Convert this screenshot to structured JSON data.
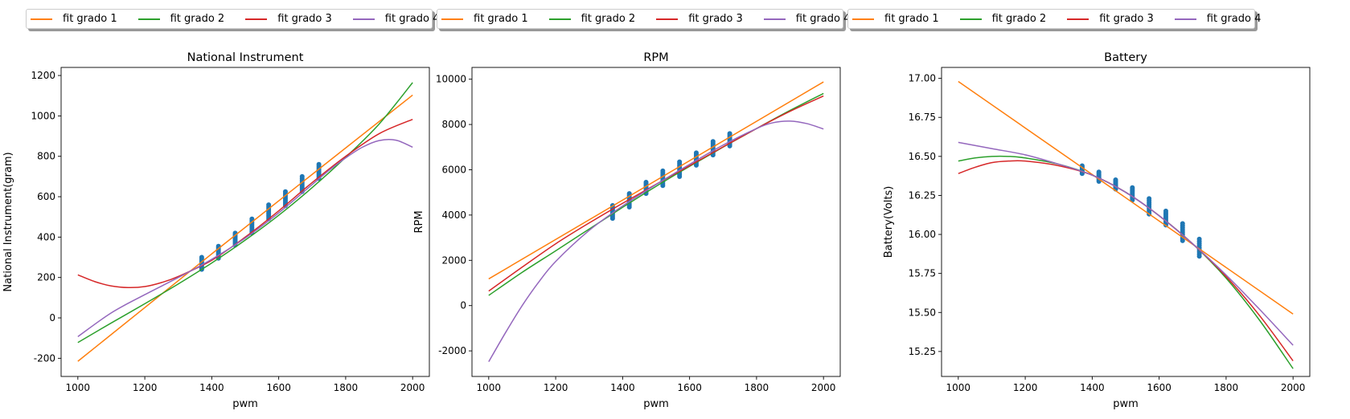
{
  "legend_entries": [
    {
      "label": "fit grado 1",
      "color": "#ff7f0e"
    },
    {
      "label": "fit grado 2",
      "color": "#2ca02c"
    },
    {
      "label": "fit grado 3",
      "color": "#d62728"
    },
    {
      "label": "fit grado 4",
      "color": "#9467bd"
    }
  ],
  "chart_data": [
    {
      "type": "scatter+line",
      "title": "National Instrument",
      "xlabel": "pwm",
      "ylabel": "National Instrument(gram)",
      "xlim": [
        950,
        2050
      ],
      "ylim": [
        -290,
        1240
      ],
      "xticks": [
        1000,
        1200,
        1400,
        1600,
        1800,
        2000
      ],
      "yticks": [
        -200,
        0,
        200,
        400,
        600,
        800,
        1000,
        1200
      ],
      "grid": false,
      "scatter": {
        "name": "",
        "color": "#1f77b4",
        "columns": [
          {
            "x": 1370,
            "ymin": 240,
            "ymax": 300
          },
          {
            "x": 1420,
            "ymin": 295,
            "ymax": 355
          },
          {
            "x": 1470,
            "ymin": 360,
            "ymax": 420
          },
          {
            "x": 1520,
            "ymin": 420,
            "ymax": 490
          },
          {
            "x": 1570,
            "ymin": 490,
            "ymax": 560
          },
          {
            "x": 1620,
            "ymin": 555,
            "ymax": 625
          },
          {
            "x": 1670,
            "ymin": 625,
            "ymax": 700
          },
          {
            "x": 1720,
            "ymin": 690,
            "ymax": 760
          }
        ]
      },
      "series": [
        {
          "name": "fit grado 1",
          "color": "#ff7f0e",
          "x": [
            1000,
            1400,
            2000
          ],
          "y": [
            -215,
            317,
            1103
          ]
        },
        {
          "name": "fit grado 2",
          "color": "#2ca02c",
          "x": [
            1000,
            1100,
            1200,
            1300,
            1400,
            1500,
            1600,
            1700,
            1800,
            1900,
            2000
          ],
          "y": [
            -122,
            -25,
            70,
            168,
            272,
            385,
            508,
            645,
            795,
            960,
            1165
          ]
        },
        {
          "name": "fit grado 3",
          "color": "#d62728",
          "x": [
            1000,
            1050,
            1100,
            1150,
            1200,
            1250,
            1300,
            1400,
            1500,
            1600,
            1700,
            1800,
            1900,
            2000
          ],
          "y": [
            213,
            180,
            158,
            150,
            155,
            175,
            205,
            285,
            400,
            530,
            670,
            800,
            912,
            983
          ]
        },
        {
          "name": "fit grado 4",
          "color": "#9467bd",
          "x": [
            1000,
            1100,
            1200,
            1300,
            1400,
            1500,
            1600,
            1700,
            1750,
            1800,
            1850,
            1900,
            1950,
            2000
          ],
          "y": [
            -93,
            25,
            115,
            200,
            290,
            395,
            520,
            660,
            730,
            792,
            845,
            878,
            880,
            845
          ]
        }
      ]
    },
    {
      "type": "scatter+line",
      "title": "RPM",
      "xlabel": "pwm",
      "ylabel": "RPM",
      "xlim": [
        950,
        2050
      ],
      "ylim": [
        -3130,
        10520
      ],
      "xticks": [
        1000,
        1200,
        1400,
        1600,
        1800,
        2000
      ],
      "yticks": [
        -2000,
        0,
        2000,
        4000,
        6000,
        8000,
        10000
      ],
      "grid": false,
      "scatter": {
        "name": "",
        "color": "#1f77b4",
        "columns": [
          {
            "x": 1370,
            "ymin": 3850,
            "ymax": 4420
          },
          {
            "x": 1420,
            "ymin": 4350,
            "ymax": 4950
          },
          {
            "x": 1470,
            "ymin": 4950,
            "ymax": 5450
          },
          {
            "x": 1520,
            "ymin": 5300,
            "ymax": 5950
          },
          {
            "x": 1570,
            "ymin": 5700,
            "ymax": 6350
          },
          {
            "x": 1620,
            "ymin": 6200,
            "ymax": 6750
          },
          {
            "x": 1670,
            "ymin": 6650,
            "ymax": 7250
          },
          {
            "x": 1720,
            "ymin": 7050,
            "ymax": 7600
          }
        ]
      },
      "series": [
        {
          "name": "fit grado 1",
          "color": "#ff7f0e",
          "x": [
            1000,
            2000
          ],
          "y": [
            1180,
            9880
          ]
        },
        {
          "name": "fit grado 2",
          "color": "#2ca02c",
          "x": [
            1000,
            1100,
            1200,
            1300,
            1400,
            1500,
            1600,
            1700,
            1800,
            1900,
            2000
          ],
          "y": [
            450,
            1470,
            2420,
            3380,
            4340,
            5270,
            6150,
            7000,
            7820,
            8620,
            9370
          ]
        },
        {
          "name": "fit grado 3",
          "color": "#d62728",
          "x": [
            1000,
            1100,
            1200,
            1300,
            1400,
            1500,
            1600,
            1700,
            1800,
            1900,
            2000
          ],
          "y": [
            640,
            1700,
            2730,
            3650,
            4520,
            5360,
            6180,
            7010,
            7820,
            8580,
            9260
          ]
        },
        {
          "name": "fit grado 4",
          "color": "#9467bd",
          "x": [
            1000,
            1050,
            1100,
            1150,
            1200,
            1300,
            1400,
            1500,
            1600,
            1700,
            1800,
            1850,
            1900,
            1950,
            2000
          ],
          "y": [
            -2480,
            -1200,
            0,
            1050,
            1950,
            3320,
            4400,
            5350,
            6240,
            7090,
            7820,
            8080,
            8150,
            8040,
            7800
          ]
        }
      ]
    },
    {
      "type": "scatter+line",
      "title": "Battery",
      "xlabel": "pwm",
      "ylabel": "Battery(Volts)",
      "xlim": [
        950,
        2050
      ],
      "ylim": [
        15.09,
        17.07
      ],
      "xticks": [
        1000,
        1200,
        1400,
        1600,
        1800,
        2000
      ],
      "yticks": [
        15.25,
        15.5,
        15.75,
        16.0,
        16.25,
        16.5,
        16.75,
        17.0
      ],
      "grid": false,
      "scatter": {
        "name": "",
        "color": "#1f77b4",
        "columns": [
          {
            "x": 1370,
            "ymin": 16.39,
            "ymax": 16.44
          },
          {
            "x": 1420,
            "ymin": 16.34,
            "ymax": 16.4
          },
          {
            "x": 1470,
            "ymin": 16.29,
            "ymax": 16.35
          },
          {
            "x": 1520,
            "ymin": 16.22,
            "ymax": 16.3
          },
          {
            "x": 1570,
            "ymin": 16.13,
            "ymax": 16.23
          },
          {
            "x": 1620,
            "ymin": 16.06,
            "ymax": 16.15
          },
          {
            "x": 1670,
            "ymin": 15.96,
            "ymax": 16.07
          },
          {
            "x": 1720,
            "ymin": 15.86,
            "ymax": 15.97
          }
        ]
      },
      "series": [
        {
          "name": "fit grado 1",
          "color": "#ff7f0e",
          "x": [
            1000,
            2000
          ],
          "y": [
            16.98,
            15.49
          ]
        },
        {
          "name": "fit grado 2",
          "color": "#2ca02c",
          "x": [
            1000,
            1050,
            1100,
            1150,
            1200,
            1300,
            1400,
            1500,
            1600,
            1700,
            1800,
            1900,
            2000
          ],
          "y": [
            16.47,
            16.49,
            16.5,
            16.5,
            16.49,
            16.45,
            16.38,
            16.27,
            16.12,
            15.94,
            15.72,
            15.45,
            15.14
          ]
        },
        {
          "name": "fit grado 3",
          "color": "#d62728",
          "x": [
            1000,
            1050,
            1100,
            1150,
            1200,
            1300,
            1400,
            1500,
            1600,
            1700,
            1800,
            1900,
            2000
          ],
          "y": [
            16.39,
            16.43,
            16.46,
            16.47,
            16.47,
            16.44,
            16.38,
            16.27,
            16.12,
            15.94,
            15.73,
            15.48,
            15.19
          ]
        },
        {
          "name": "fit grado 4",
          "color": "#9467bd",
          "x": [
            1000,
            1100,
            1200,
            1300,
            1400,
            1500,
            1600,
            1700,
            1800,
            1900,
            2000
          ],
          "y": [
            16.59,
            16.55,
            16.51,
            16.45,
            16.38,
            16.27,
            16.12,
            15.94,
            15.74,
            15.52,
            15.29
          ]
        }
      ]
    }
  ]
}
